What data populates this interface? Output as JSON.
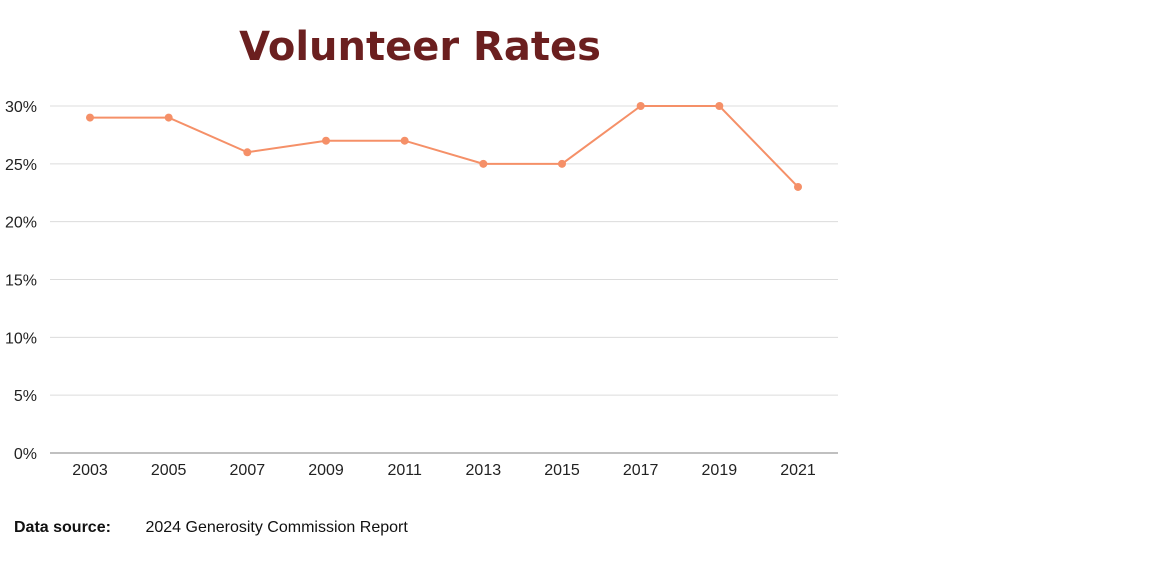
{
  "footer": {
    "source_label": "Data source:",
    "source_text": "2024 Generosity Commission Report"
  },
  "chart_data": {
    "type": "line",
    "title": "Volunteer Rates",
    "xlabel": "",
    "ylabel": "",
    "categories": [
      "2003",
      "2005",
      "2007",
      "2009",
      "2011",
      "2013",
      "2015",
      "2017",
      "2019",
      "2021"
    ],
    "series": [
      {
        "values": [
          29,
          29,
          26,
          27,
          27,
          25,
          25,
          30,
          30,
          23
        ]
      }
    ],
    "ylim": [
      0,
      30
    ],
    "yticks": [
      0,
      5,
      10,
      15,
      20,
      25,
      30
    ],
    "ytick_format": "%",
    "grid": true,
    "legend": "none",
    "colors": {
      "line": "#f59068",
      "title": "#6b1f1f"
    }
  }
}
